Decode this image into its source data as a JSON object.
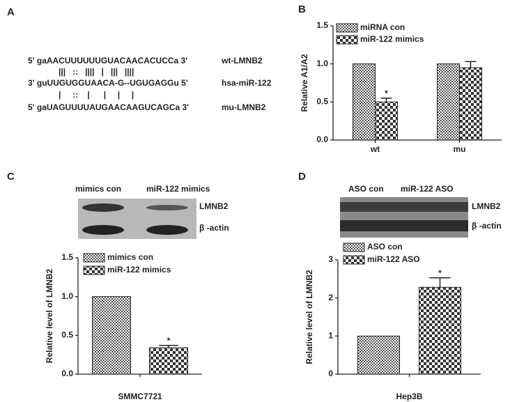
{
  "panel_labels": [
    "A",
    "B",
    "C",
    "D"
  ],
  "sequences": [
    {
      "text": "5' gaAACUUUUUUGUACAACACUCCa 3'",
      "name": "wt-LMNB2"
    },
    {
      "text": "3' guUUGUGGUAACA-G--UGUGAGGu 5'",
      "name": "hsa-miR-122"
    },
    {
      "text": "5' gaUAGUUUUAUGAACAAGUCAGCa 3'",
      "name": "mu-LMNB2"
    }
  ],
  "pairings": [
    "|||   ::   ||||   |   |||   ||||",
    "|     ::    |      |     |     |"
  ],
  "blots": [
    {
      "lanes": [
        "mimics con",
        "miR-122 mimics"
      ],
      "bands": [
        "LMNB2",
        "β -actin"
      ]
    },
    {
      "lanes": [
        "ASO con",
        "miR-122 ASO"
      ],
      "bands": [
        "LMNB2",
        "β -actin"
      ]
    }
  ],
  "chart_data": [
    {
      "type": "bar",
      "y_label": "Relative A1/A2",
      "categories": [
        "wt",
        "mu"
      ],
      "series": [
        {
          "name": "miRNA con",
          "color": "#555555",
          "values": [
            1,
            1
          ],
          "errors": [
            null,
            null
          ],
          "significance": [
            null,
            null
          ]
        },
        {
          "name": "miR-122 mimics",
          "color": "#333333",
          "values": [
            0.5,
            0.95
          ],
          "errors": [
            0.05,
            0.08
          ],
          "significance": [
            "*",
            null
          ]
        }
      ],
      "ylim": [
        0,
        1.5
      ],
      "yticks": [
        {
          "value": 0,
          "label": "0.0"
        },
        {
          "value": 0.5,
          "label": "0.5"
        },
        {
          "value": 1,
          "label": "1.0"
        },
        {
          "value": 1.5,
          "label": "1.5"
        }
      ]
    },
    {
      "type": "bar",
      "y_label": "Relative level of LMNB2",
      "categories": [
        "SMMC7721"
      ],
      "series": [
        {
          "name": "mimics con",
          "color": "#555555",
          "values": [
            1
          ],
          "errors": [
            null
          ],
          "significance": [
            null
          ]
        },
        {
          "name": "miR-122 mimics",
          "color": "#333333",
          "values": [
            0.34
          ],
          "errors": [
            0.03
          ],
          "significance": [
            "*"
          ]
        }
      ],
      "ylim": [
        0,
        1.5
      ],
      "yticks": [
        {
          "value": 0,
          "label": "0.0"
        },
        {
          "value": 0.5,
          "label": "0.5"
        },
        {
          "value": 1,
          "label": "1.0"
        },
        {
          "value": 1.5,
          "label": "1.5"
        }
      ]
    },
    {
      "type": "bar",
      "y_label": "Relative level of LMNB2",
      "categories": [
        "Hep3B"
      ],
      "series": [
        {
          "name": "ASO con",
          "color": "#555555",
          "values": [
            1
          ],
          "errors": [
            null
          ],
          "significance": [
            null
          ]
        },
        {
          "name": "miR-122 ASO",
          "color": "#333333",
          "values": [
            2.28
          ],
          "errors": [
            0.25
          ],
          "significance": [
            "*"
          ]
        }
      ],
      "ylim": [
        0,
        3
      ],
      "yticks": [
        0,
        1,
        2,
        3
      ]
    }
  ]
}
